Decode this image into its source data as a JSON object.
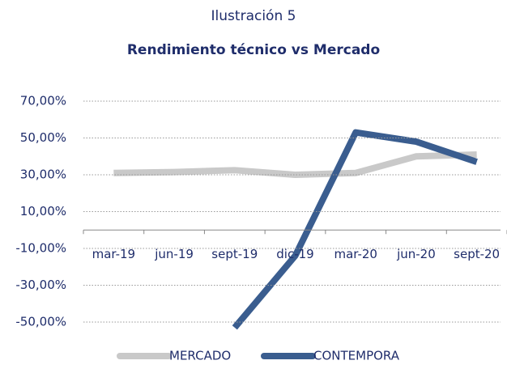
{
  "chart_data": {
    "type": "line",
    "title": "Ilustración 5",
    "subtitle": "Rendimiento técnico vs Mercado",
    "categories": [
      "mar-19",
      "jun-19",
      "sept-19",
      "dic-19",
      "mar-20",
      "jun-20",
      "sept-20"
    ],
    "series": [
      {
        "name": "MERCADO",
        "color": "#c9c9c9",
        "values": [
          31,
          31.5,
          32.5,
          30,
          31,
          40,
          41
        ]
      },
      {
        "name": "CONTEMPORA",
        "color": "#3a5d8f",
        "values": [
          null,
          null,
          -53,
          -14,
          53,
          48,
          37
        ]
      }
    ],
    "ylim": [
      -55,
      70
    ],
    "yticks": [
      {
        "value": 70,
        "label": "70,00%"
      },
      {
        "value": 50,
        "label": "50,00%"
      },
      {
        "value": 30,
        "label": "30,00%"
      },
      {
        "value": 10,
        "label": "10,00%"
      },
      {
        "value": -10,
        "label": "-10,00%"
      },
      {
        "value": -30,
        "label": "-30,00%"
      },
      {
        "value": -50,
        "label": "-50,00%"
      }
    ],
    "grid": true,
    "legend": "bottom"
  }
}
